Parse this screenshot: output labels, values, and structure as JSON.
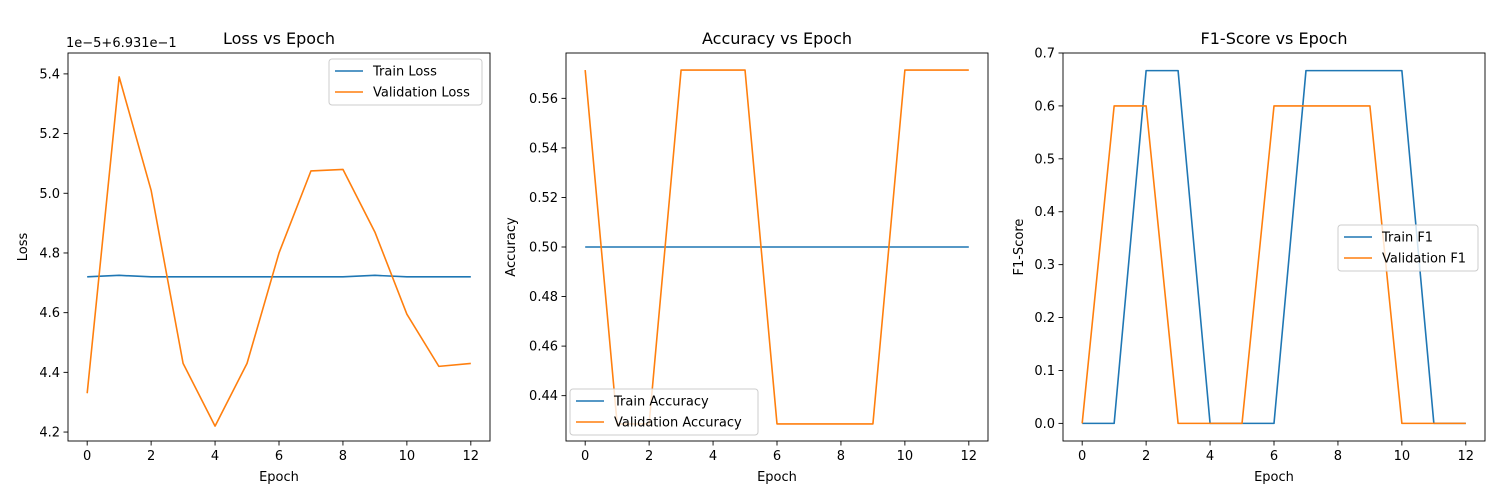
{
  "chart_data": [
    {
      "type": "line",
      "title": "Loss vs Epoch",
      "xlabel": "Epoch",
      "ylabel": "Loss",
      "offset_label": "1e−5+6.931e−1",
      "xlim": [
        -0.6,
        12.6
      ],
      "ylim": [
        4.17,
        5.47
      ],
      "xticks": [
        0,
        2,
        4,
        6,
        8,
        10,
        12
      ],
      "yticks": [
        4.2,
        4.4,
        4.6,
        4.8,
        5.0,
        5.2,
        5.4
      ],
      "ytick_labels": [
        "4.2",
        "4.4",
        "4.6",
        "4.8",
        "5.0",
        "5.2",
        "5.4"
      ],
      "legend_position": "upper right",
      "x": [
        0,
        1,
        2,
        3,
        4,
        5,
        6,
        7,
        8,
        9,
        10,
        11,
        12
      ],
      "series": [
        {
          "name": "Train Loss",
          "color": "#1f77b4",
          "values": [
            4.72,
            4.725,
            4.72,
            4.72,
            4.72,
            4.72,
            4.72,
            4.72,
            4.72,
            4.725,
            4.72,
            4.72,
            4.72
          ]
        },
        {
          "name": "Validation Loss",
          "color": "#ff7f0e",
          "values": [
            4.33,
            5.39,
            5.01,
            4.43,
            4.22,
            4.43,
            4.8,
            5.075,
            5.08,
            4.87,
            4.595,
            4.42,
            4.43
          ]
        }
      ]
    },
    {
      "type": "line",
      "title": "Accuracy vs Epoch",
      "xlabel": "Epoch",
      "ylabel": "Accuracy",
      "offset_label": "",
      "xlim": [
        -0.6,
        12.6
      ],
      "ylim": [
        0.4217,
        0.5783
      ],
      "xticks": [
        0,
        2,
        4,
        6,
        8,
        10,
        12
      ],
      "yticks": [
        0.44,
        0.46,
        0.48,
        0.5,
        0.52,
        0.54,
        0.56
      ],
      "ytick_labels": [
        "0.44",
        "0.46",
        "0.48",
        "0.50",
        "0.52",
        "0.54",
        "0.56"
      ],
      "legend_position": "lower left",
      "x": [
        0,
        1,
        2,
        3,
        4,
        5,
        6,
        7,
        8,
        9,
        10,
        11,
        12
      ],
      "series": [
        {
          "name": "Train Accuracy",
          "color": "#1f77b4",
          "values": [
            0.5,
            0.5,
            0.5,
            0.5,
            0.5,
            0.5,
            0.5,
            0.5,
            0.5,
            0.5,
            0.5,
            0.5,
            0.5
          ]
        },
        {
          "name": "Validation Accuracy",
          "color": "#ff7f0e",
          "values": [
            0.5714,
            0.4286,
            0.4286,
            0.5714,
            0.5714,
            0.5714,
            0.4286,
            0.4286,
            0.4286,
            0.4286,
            0.5714,
            0.5714,
            0.5714
          ]
        }
      ]
    },
    {
      "type": "line",
      "title": "F1-Score vs Epoch",
      "xlabel": "Epoch",
      "ylabel": "F1-Score",
      "offset_label": "",
      "xlim": [
        -0.6,
        12.6
      ],
      "ylim": [
        -0.0333,
        0.7
      ],
      "xticks": [
        0,
        2,
        4,
        6,
        8,
        10,
        12
      ],
      "yticks": [
        0.0,
        0.1,
        0.2,
        0.3,
        0.4,
        0.5,
        0.6,
        0.7
      ],
      "ytick_labels": [
        "0.0",
        "0.1",
        "0.2",
        "0.3",
        "0.4",
        "0.5",
        "0.6",
        "0.7"
      ],
      "legend_position": "center right",
      "x": [
        0,
        1,
        2,
        3,
        4,
        5,
        6,
        7,
        8,
        9,
        10,
        11,
        12
      ],
      "series": [
        {
          "name": "Train F1",
          "color": "#1f77b4",
          "values": [
            0,
            0,
            0.6667,
            0.6667,
            0,
            0,
            0,
            0.6667,
            0.6667,
            0.6667,
            0.6667,
            0,
            0
          ]
        },
        {
          "name": "Validation F1",
          "color": "#ff7f0e",
          "values": [
            0,
            0.6,
            0.6,
            0,
            0,
            0,
            0.6,
            0.6,
            0.6,
            0.6,
            0,
            0,
            0
          ]
        }
      ]
    }
  ]
}
